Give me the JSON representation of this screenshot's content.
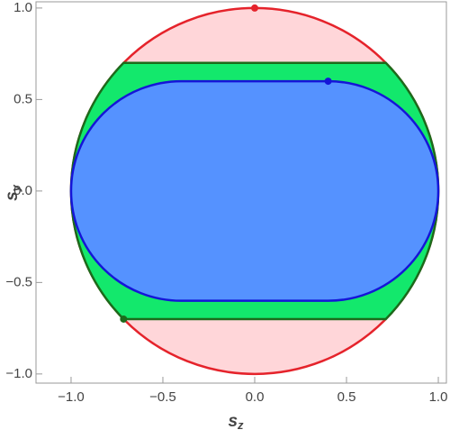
{
  "chart_data": {
    "type": "region",
    "xlabel": [
      "s",
      "z"
    ],
    "ylabel": [
      "s",
      "y"
    ],
    "xlim": [
      -1.191,
      1.044
    ],
    "ylim": [
      -1.05,
      1.034
    ],
    "xticks": [
      {
        "value": -1,
        "label": "−1.0"
      },
      {
        "value": -0.5,
        "label": "−0.5"
      },
      {
        "value": 0,
        "label": "0.0"
      },
      {
        "value": 0.5,
        "label": "0.5"
      },
      {
        "value": 1,
        "label": "1.0"
      }
    ],
    "yticks": [
      {
        "value": -1,
        "label": "−1.0"
      },
      {
        "value": -0.5,
        "label": "−0.5"
      },
      {
        "value": 0,
        "label": "0.0"
      },
      {
        "value": 0.5,
        "label": "0.5"
      },
      {
        "value": 1,
        "label": "1.0"
      }
    ],
    "shapes": [
      {
        "kind": "disk",
        "radius": 1,
        "fill": "#ffd6d9",
        "stroke": "#e5232b"
      },
      {
        "kind": "band",
        "radius": 1,
        "ymax": 0.7,
        "fill": "#13e86c",
        "stroke": "#1b6b1b"
      },
      {
        "kind": "stadium",
        "ymax": 0.6,
        "half_flat": 0.4,
        "fill": "#5592ff",
        "stroke": "#1515d8"
      }
    ],
    "points": {
      "x": [
        0,
        0.4,
        -0.714
      ],
      "y": [
        1,
        0.6,
        -0.7
      ],
      "colors": [
        "#e5232b",
        "#1515d8",
        "#1b6b1b"
      ]
    }
  }
}
